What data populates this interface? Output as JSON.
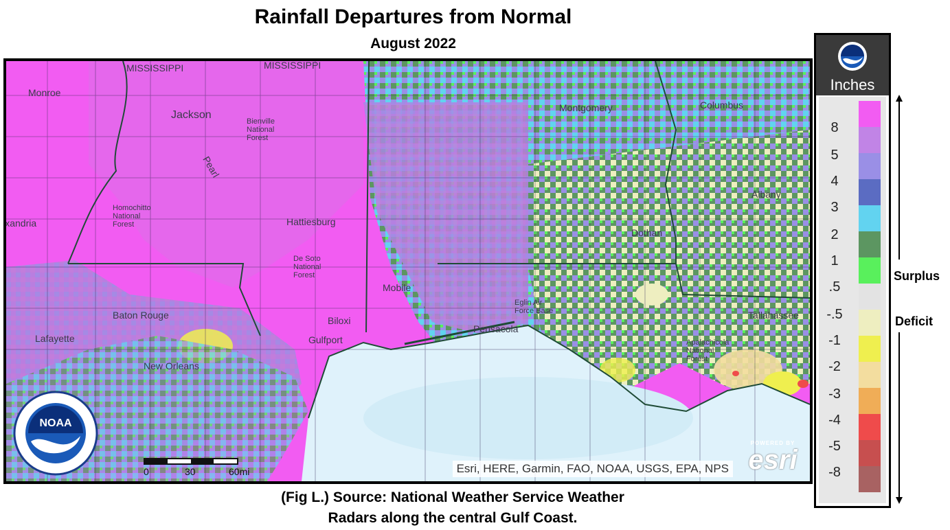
{
  "header": {
    "title": "Rainfall Departures from Normal",
    "subtitle": "August 2022"
  },
  "caption": {
    "line1": "(Fig L.) Source: National Weather Service Weather",
    "line2": "Radars along the central Gulf Coast."
  },
  "map": {
    "attribution": "Esri, HERE, Garmin, FAO, NOAA, USGS, EPA, NPS",
    "esri_powered": "POWERED BY",
    "esri_brand": "esri",
    "scale_labels": [
      "0",
      "30",
      "60mi"
    ],
    "place_labels": [
      "MISSISSIPPI",
      "MISSISSIPPI",
      "Monroe",
      "Jackson",
      "Bienville National Forest",
      "Homochitto National Forest",
      "Hattiesburg",
      "De Soto National Forest",
      "Alexandria",
      "Baton Rouge",
      "Lafayette",
      "New Orleans",
      "Biloxi",
      "Gulfport",
      "Mobile",
      "Montgomery",
      "Columbus",
      "Dothan",
      "Albany",
      "Tallahassee",
      "Eglin Air Force Base",
      "Pensacola",
      "Apalachicola National Forest",
      "Pearl"
    ]
  },
  "legend": {
    "unit": "Inches",
    "tick_labels": [
      "8",
      "5",
      "4",
      "3",
      "2",
      "1",
      ".5",
      "-.5",
      "-1",
      "-2",
      "-3",
      "-4",
      "-5",
      "-8"
    ],
    "colors": [
      "#f25cf2",
      "#c184e6",
      "#9a8fe6",
      "#5b6cc2",
      "#62d3f0",
      "#5c9661",
      "#59f05c",
      "#e3e3e3",
      "#eeeec0",
      "#efef4f",
      "#f3dd9f",
      "#f0ad57",
      "#ef4b4b",
      "#c74f4f",
      "#a86262"
    ],
    "surplus_label": "Surplus",
    "deficit_label": "Deficit"
  },
  "icons": {
    "noaa_legend": "noaa-logo-icon",
    "noaa_seal": "noaa-seal-icon"
  }
}
